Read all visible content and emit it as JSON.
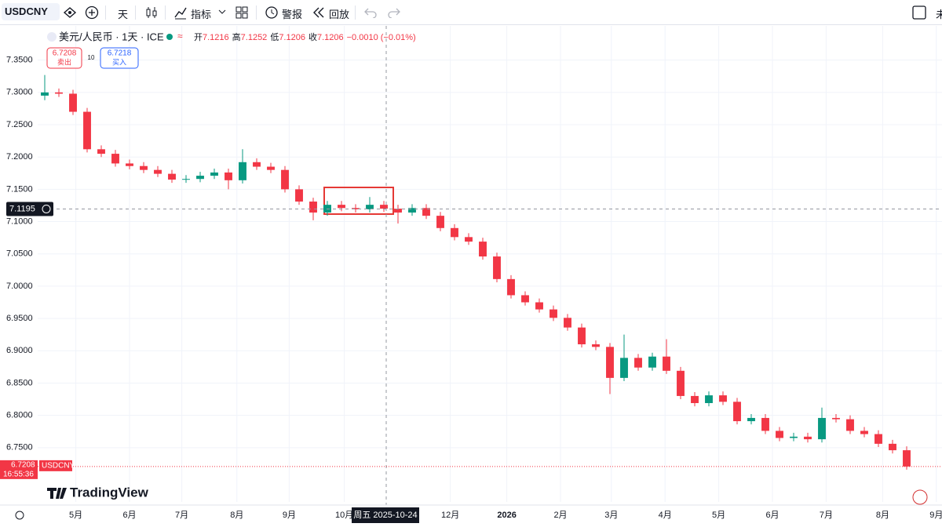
{
  "toolbar": {
    "symbol": "USDCNY",
    "interval": "天",
    "indicators": "指标",
    "alerts": "警报",
    "replay": "回放",
    "more": "未"
  },
  "legend": {
    "title": "美元/人民币 · 1天 · ICE",
    "open_label": "开",
    "open": "7.1216",
    "high_label": "高",
    "high": "7.1252",
    "low_label": "低",
    "low": "7.1206",
    "close_label": "收",
    "close": "7.1206",
    "change": "−0.0010 (−0.01%)"
  },
  "trade": {
    "sell_price": "6.7208",
    "sell": "卖出",
    "spread": "10",
    "buy_price": "6.7218",
    "buy": "买入"
  },
  "chart_data": {
    "type": "candlestick",
    "categories": [
      null,
      null,
      null,
      null,
      null,
      null,
      null,
      null,
      null,
      null,
      null,
      null,
      null,
      null,
      null,
      null,
      null,
      null,
      null,
      null,
      null,
      null,
      null,
      null,
      null,
      null,
      null,
      null,
      null,
      null,
      null,
      null,
      null,
      null,
      null,
      null,
      null,
      null,
      null,
      null,
      null,
      null,
      null,
      null,
      null,
      null,
      null,
      null,
      null,
      null,
      null,
      null,
      null,
      null,
      null,
      null,
      null,
      null,
      null,
      null,
      null,
      null
    ],
    "open": [
      7.295,
      7.3,
      7.298,
      7.27,
      7.212,
      7.205,
      7.19,
      7.186,
      7.18,
      7.174,
      7.165,
      7.166,
      7.171,
      7.176,
      7.164,
      7.192,
      7.185,
      7.18,
      7.15,
      7.131,
      7.114,
      7.126,
      7.121,
      7.119,
      7.126,
      7.12,
      7.114,
      7.121,
      7.109,
      7.09,
      7.076,
      7.069,
      7.046,
      7.011,
      6.986,
      6.975,
      6.964,
      6.951,
      6.936,
      6.91,
      6.906,
      6.858,
      6.889,
      6.874,
      6.891,
      6.869,
      6.83,
      6.819,
      6.831,
      6.821,
      6.791,
      6.796,
      6.776,
      6.765,
      6.767,
      6.763,
      6.796,
      6.794,
      6.776,
      6.771,
      6.756,
      6.746
    ],
    "high": [
      7.327,
      7.306,
      7.304,
      7.276,
      7.218,
      7.211,
      7.196,
      7.192,
      7.186,
      7.18,
      7.172,
      7.177,
      7.182,
      7.182,
      7.212,
      7.198,
      7.191,
      7.186,
      7.156,
      7.137,
      7.132,
      7.132,
      7.127,
      7.138,
      7.132,
      7.126,
      7.127,
      7.127,
      7.115,
      7.096,
      7.082,
      7.075,
      7.052,
      7.017,
      6.992,
      6.981,
      6.97,
      6.957,
      6.942,
      6.916,
      6.912,
      6.925,
      6.895,
      6.897,
      6.918,
      6.875,
      6.836,
      6.837,
      6.837,
      6.827,
      6.802,
      6.802,
      6.782,
      6.773,
      6.773,
      6.812,
      6.802,
      6.8,
      6.782,
      6.777,
      6.762,
      6.752
    ],
    "low": [
      7.288,
      7.293,
      7.265,
      7.207,
      7.2,
      7.185,
      7.181,
      7.175,
      7.169,
      7.16,
      7.16,
      7.161,
      7.166,
      7.15,
      7.159,
      7.18,
      7.175,
      7.145,
      7.126,
      7.102,
      7.109,
      7.116,
      7.114,
      7.114,
      7.115,
      7.097,
      7.109,
      7.104,
      7.085,
      7.071,
      7.064,
      7.041,
      7.006,
      6.981,
      6.97,
      6.959,
      6.946,
      6.931,
      6.905,
      6.901,
      6.833,
      6.853,
      6.869,
      6.869,
      6.864,
      6.825,
      6.814,
      6.814,
      6.816,
      6.786,
      6.786,
      6.771,
      6.76,
      6.76,
      6.758,
      6.758,
      6.789,
      6.771,
      6.766,
      6.751,
      6.741,
      6.716
    ],
    "close": [
      7.3,
      7.298,
      7.27,
      7.212,
      7.205,
      7.19,
      7.186,
      7.18,
      7.174,
      7.165,
      7.166,
      7.171,
      7.176,
      7.164,
      7.192,
      7.185,
      7.18,
      7.15,
      7.131,
      7.114,
      7.126,
      7.121,
      7.119,
      7.126,
      7.12,
      7.114,
      7.121,
      7.109,
      7.09,
      7.076,
      7.069,
      7.046,
      7.011,
      6.986,
      6.975,
      6.964,
      6.951,
      6.936,
      6.91,
      6.906,
      6.858,
      6.889,
      6.874,
      6.891,
      6.869,
      6.83,
      6.819,
      6.831,
      6.821,
      6.791,
      6.796,
      6.776,
      6.765,
      6.767,
      6.763,
      6.796,
      6.794,
      6.776,
      6.771,
      6.756,
      6.746,
      6.7208
    ],
    "up_color": "#089981",
    "down_color": "#f23645",
    "xlim": [
      -0.5,
      63.5
    ],
    "xticks": [
      {
        "value": 2.2,
        "label": "5月"
      },
      {
        "value": 6,
        "label": "6月"
      },
      {
        "value": 9.7,
        "label": "7月"
      },
      {
        "value": 13.6,
        "label": "8月"
      },
      {
        "value": 17.3,
        "label": "9月"
      },
      {
        "value": 21.2,
        "label": "10月"
      },
      {
        "value": 28.7,
        "label": "12月"
      },
      {
        "value": 32.7,
        "label": "2026"
      },
      {
        "value": 36.5,
        "label": "2月"
      },
      {
        "value": 40.1,
        "label": "3月"
      },
      {
        "value": 43.9,
        "label": "4月"
      },
      {
        "value": 47.7,
        "label": "5月"
      },
      {
        "value": 51.5,
        "label": "6月"
      },
      {
        "value": 55.3,
        "label": "7月"
      },
      {
        "value": 59.3,
        "label": "8月"
      },
      {
        "value": 63.1,
        "label": "9月"
      }
    ],
    "ylim": [
      6.666,
      7.403
    ],
    "yticks": [
      {
        "value": 6.75,
        "label": "6.7500"
      },
      {
        "value": 6.8,
        "label": "6.8000"
      },
      {
        "value": 6.85,
        "label": "6.8500"
      },
      {
        "value": 6.9,
        "label": "6.9000"
      },
      {
        "value": 6.95,
        "label": "6.9500"
      },
      {
        "value": 7.0,
        "label": "7.0000"
      },
      {
        "value": 7.05,
        "label": "7.0500"
      },
      {
        "value": 7.1,
        "label": "7.1000"
      },
      {
        "value": 7.15,
        "label": "7.1500"
      },
      {
        "value": 7.2,
        "label": "7.2000"
      },
      {
        "value": 7.25,
        "label": "7.2500"
      },
      {
        "value": 7.3,
        "label": "7.3000"
      },
      {
        "value": 7.35,
        "label": "7.3500"
      }
    ],
    "grid": true,
    "crosshair_price": 7.1195,
    "crosshair_date": "周五 2025-10-24",
    "last_price": 6.7208,
    "last_symbol": "USDCNY",
    "countdown": "16:55:36"
  },
  "footer": {
    "logo": "TradingView"
  }
}
